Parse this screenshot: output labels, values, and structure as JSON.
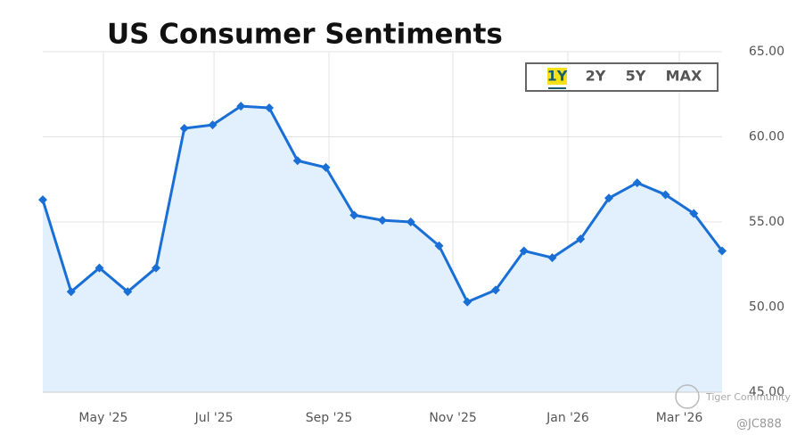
{
  "chart_data": {
    "type": "line",
    "title": "US Consumer Sentiments",
    "x": [
      0,
      1,
      2,
      3,
      4,
      5,
      6,
      7,
      8,
      9,
      10,
      11,
      12,
      13,
      14,
      15,
      16,
      17,
      18,
      19,
      20,
      21,
      22,
      23,
      24
    ],
    "series": [
      {
        "name": "US Consumer Sentiment",
        "color": "#1a6fd6",
        "values": [
          56.3,
          50.9,
          52.3,
          50.9,
          52.3,
          60.5,
          60.7,
          61.8,
          61.7,
          58.6,
          58.2,
          55.4,
          55.1,
          55.0,
          53.6,
          50.3,
          51.0,
          53.3,
          52.9,
          54.0,
          56.4,
          57.3,
          56.6,
          55.5,
          53.3
        ]
      }
    ],
    "xlim": [
      0,
      24
    ],
    "xticks": [
      {
        "value": 2.14,
        "label": "May '25"
      },
      {
        "value": 6.05,
        "label": "Jul '25"
      },
      {
        "value": 10.11,
        "label": "Sep '25"
      },
      {
        "value": 14.49,
        "label": "Nov '25"
      },
      {
        "value": 18.55,
        "label": "Jan '26"
      },
      {
        "value": 22.49,
        "label": "Mar '26"
      }
    ],
    "ylim": [
      45,
      65
    ],
    "yticks": [
      {
        "value": 45,
        "label": "45.00"
      },
      {
        "value": 50,
        "label": "50.00"
      },
      {
        "value": 55,
        "label": "55.00"
      },
      {
        "value": 60,
        "label": "60.00"
      },
      {
        "value": 65,
        "label": "65.00"
      }
    ],
    "grid": true,
    "area_color": "#e2effc",
    "range_buttons": [
      "1Y",
      "2Y",
      "5Y",
      "MAX"
    ],
    "active_button": 0,
    "watermark": "Tiger Community",
    "author": "@JC888"
  }
}
